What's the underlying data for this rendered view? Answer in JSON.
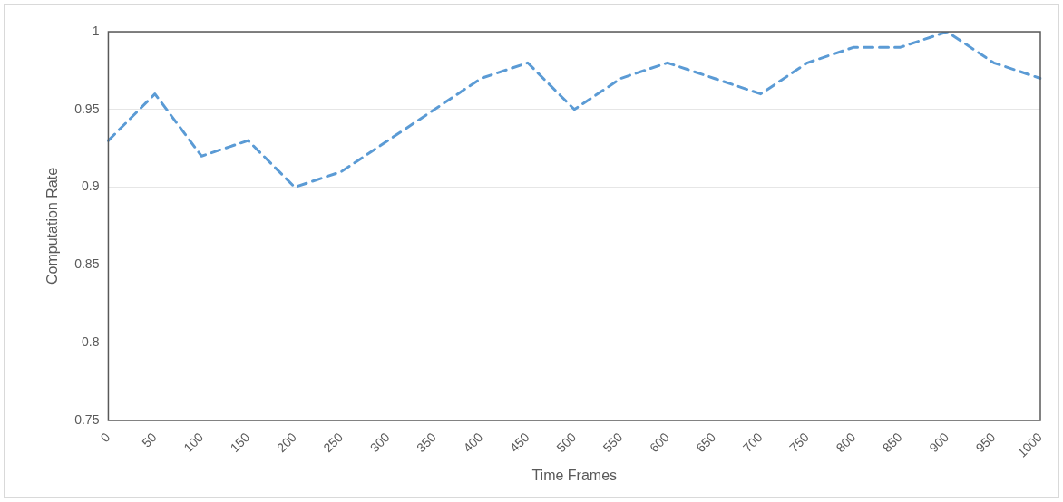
{
  "chart_data": {
    "type": "line",
    "xlabel": "Time Frames",
    "ylabel": "Computation Rate",
    "categories": [
      "0",
      "50",
      "100",
      "150",
      "200",
      "250",
      "300",
      "350",
      "400",
      "450",
      "500",
      "550",
      "600",
      "650",
      "700",
      "750",
      "800",
      "850",
      "900",
      "950",
      "1000"
    ],
    "series": [
      {
        "color": "#5b9bd5",
        "values": [
          0.93,
          0.96,
          0.92,
          0.93,
          0.9,
          0.91,
          0.93,
          0.95,
          0.97,
          0.98,
          0.95,
          0.97,
          0.98,
          0.97,
          0.96,
          0.98,
          0.99,
          0.99,
          1.0,
          0.98,
          0.97
        ]
      }
    ],
    "ylim": [
      0.75,
      1
    ],
    "yticks": [
      0.75,
      0.8,
      0.85,
      0.9,
      0.95,
      1
    ],
    "grid": "y",
    "line_style": "dashed",
    "marker": "none"
  }
}
